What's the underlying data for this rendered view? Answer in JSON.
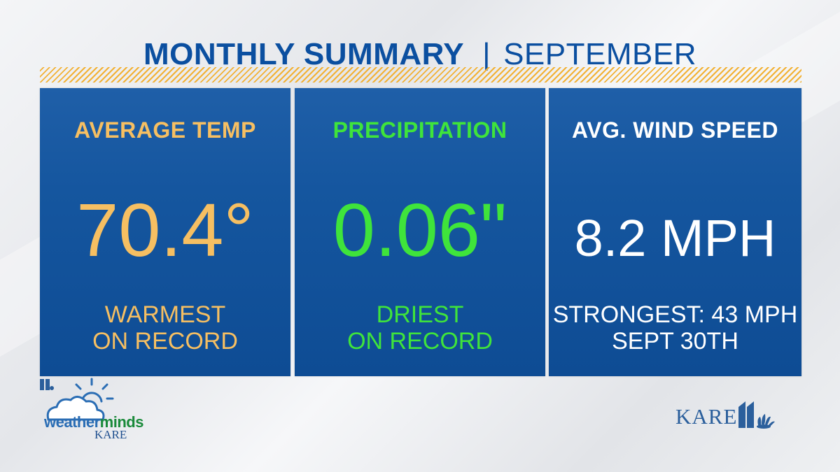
{
  "header": {
    "title": "MONTHLY SUMMARY",
    "separator": "|",
    "subtitle": "SEPTEMBER"
  },
  "panels": [
    {
      "label": "AVERAGE TEMP",
      "value": "70.4°",
      "note_line1": "WARMEST",
      "note_line2": "ON RECORD",
      "color": "#f6bf62"
    },
    {
      "label": "PRECIPITATION",
      "value": "0.06\"",
      "note_line1": "DRIEST",
      "note_line2": "ON RECORD",
      "color": "#3fe43b"
    },
    {
      "label": "AVG. WIND SPEED",
      "value": "8.2 MPH",
      "note_line1": "STRONGEST: 43 MPH",
      "note_line2": "SEPT 30TH",
      "color": "#ffffff"
    }
  ],
  "logos": {
    "weatherminds_weather": "weather",
    "weatherminds_minds": "minds",
    "weatherminds_station": "KARE",
    "station": "KARE"
  },
  "colors": {
    "header_blue": "#0b4fa0",
    "panel_blue": "#15569f",
    "stripe_gold": "#f2b134"
  }
}
